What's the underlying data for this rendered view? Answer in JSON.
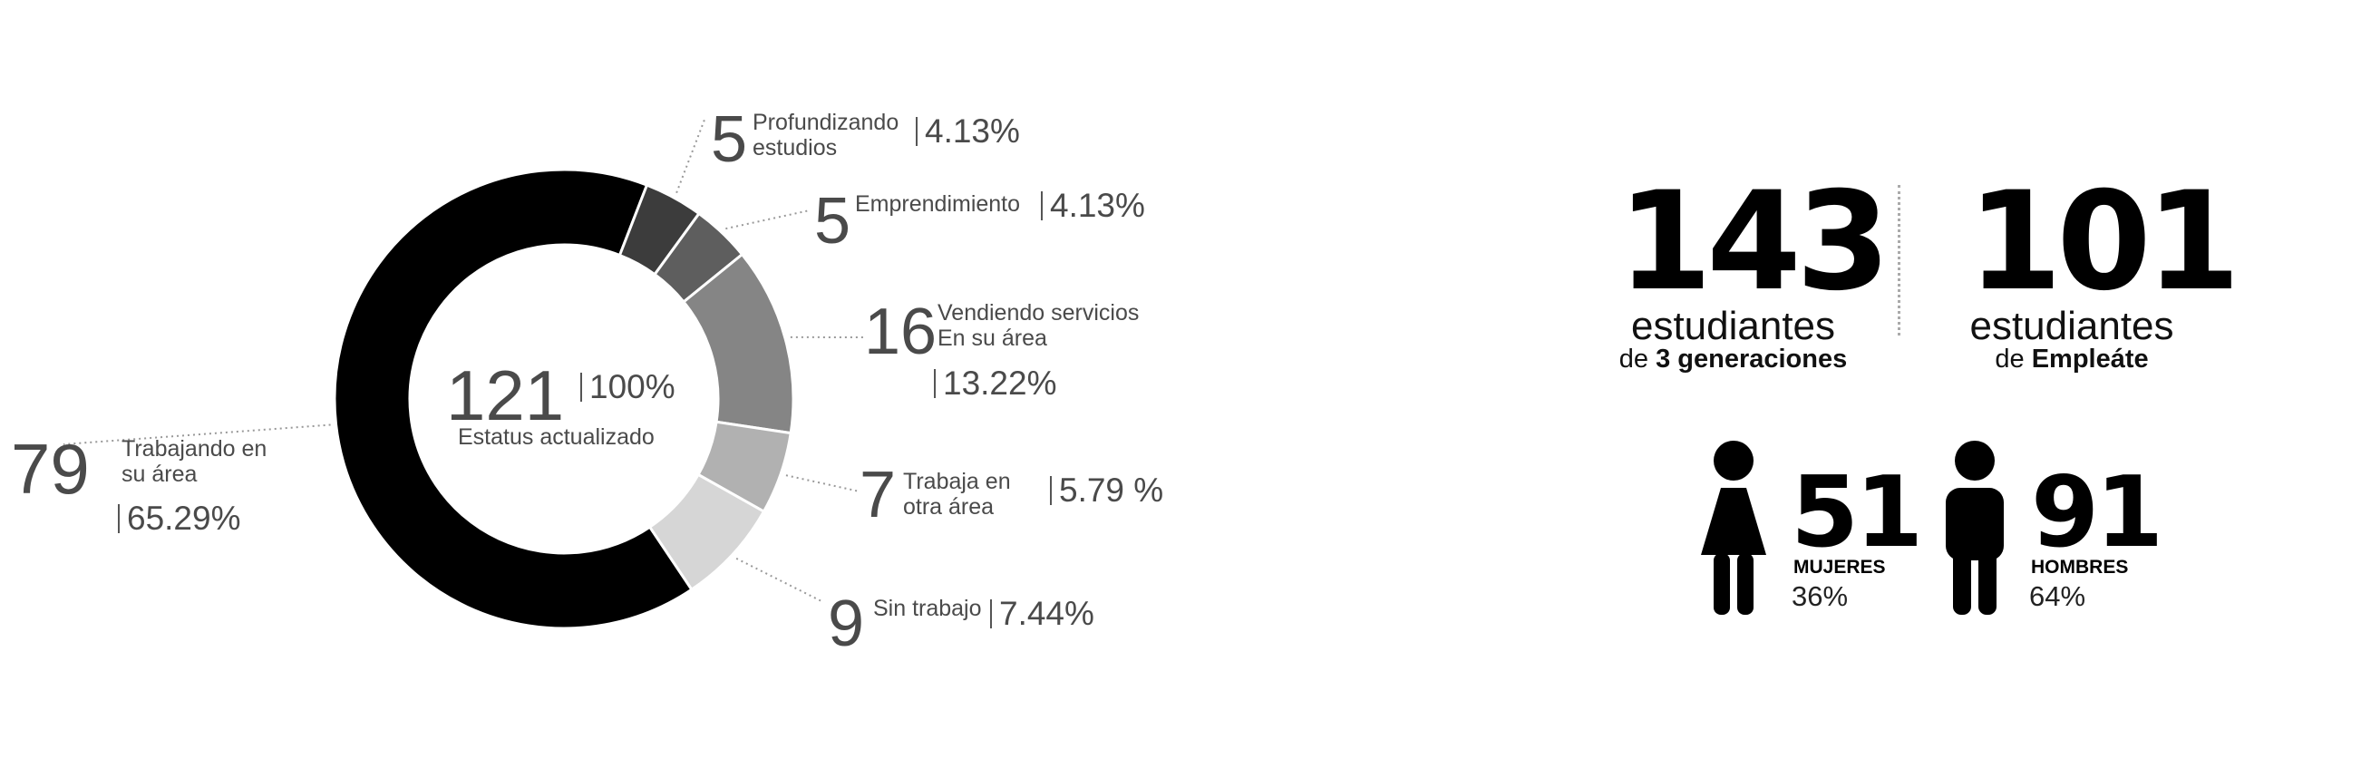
{
  "chart_data": {
    "type": "pie",
    "variant": "donut",
    "total": {
      "value": "121",
      "percent": "100%",
      "label": "Estatus actualizado"
    },
    "slices": [
      {
        "name": "Trabajando en su área",
        "value": 79,
        "count": "79",
        "label_lines": [
          "Trabajando en",
          "su área"
        ],
        "percent": "65.29%",
        "color": "#000000"
      },
      {
        "name": "Profundizando estudios",
        "value": 5,
        "count": "5",
        "label_lines": [
          "Profundizando",
          "estudios"
        ],
        "percent": "4.13%",
        "color": "#3c3c3c"
      },
      {
        "name": "Emprendimiento",
        "value": 5,
        "count": "5",
        "label_lines": [
          "Emprendimiento"
        ],
        "percent": "4.13%",
        "color": "#5e5e5e"
      },
      {
        "name": "Vendiendo servicios En su área",
        "value": 16,
        "count": "16",
        "label_lines": [
          "Vendiendo servicios",
          "En su área"
        ],
        "percent": "13.22%",
        "color": "#858585"
      },
      {
        "name": "Trabaja en otra área",
        "value": 7,
        "count": "7",
        "label_lines": [
          "Trabaja en",
          "otra área"
        ],
        "percent": "5.79 %",
        "color": "#b1b1b1"
      },
      {
        "name": "Sin trabajo",
        "value": 9,
        "count": "9",
        "label_lines": [
          "Sin trabajo"
        ],
        "percent": "7.44%",
        "color": "#d6d6d6"
      }
    ]
  },
  "stats": {
    "students": {
      "number": "143",
      "line1": "estudiantes",
      "line2_prefix": "de ",
      "line2_bold": "3 generaciones"
    },
    "empleate": {
      "number": "101",
      "line1": "estudiantes",
      "line2_prefix": "de ",
      "line2_bold": "Empleáte"
    }
  },
  "gender": {
    "women": {
      "number": "51",
      "label": "MUJERES",
      "percent": "36%"
    },
    "men": {
      "number": "91",
      "label": "HOMBRES",
      "percent": "64%"
    }
  }
}
